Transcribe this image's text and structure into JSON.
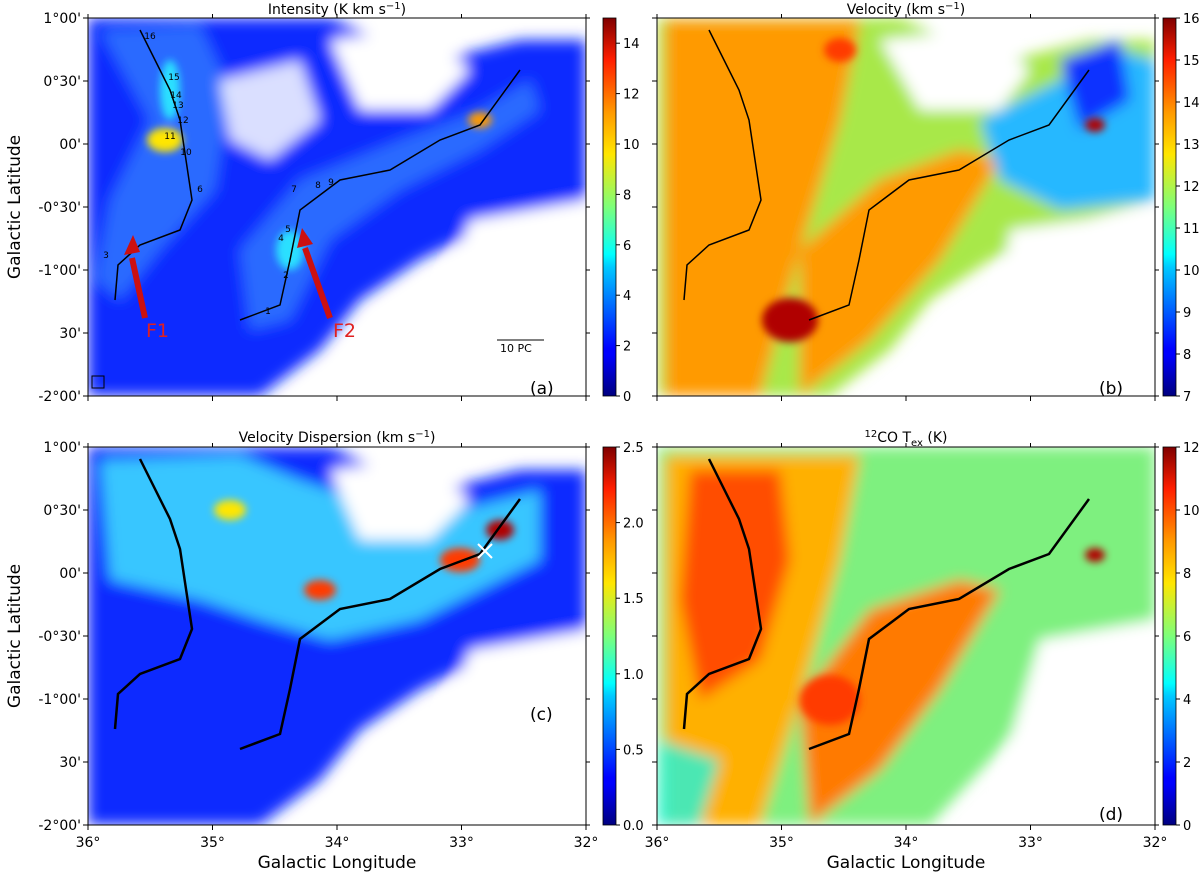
{
  "chart_data": [
    {
      "type": "heatmap",
      "panel_label": "(a)",
      "title_prefix": "Intensity (K km s",
      "title_sup": "−1",
      "title_suffix": ")",
      "ylabel": "Galactic Latitude",
      "xlabel": "",
      "colorbar_ticks": [
        "0",
        "2",
        "4",
        "6",
        "8",
        "10",
        "12",
        "14"
      ],
      "colorbar_range": [
        0,
        15
      ],
      "colormap": "jet",
      "annotations": {
        "filament_1": "F1",
        "filament_2": "F2",
        "scale_bar": "10 PC",
        "clump_numbers": [
          "1",
          "2",
          "3",
          "4",
          "5",
          "6",
          "7",
          "8",
          "9",
          "10",
          "11",
          "12",
          "13",
          "14",
          "15",
          "16"
        ]
      }
    },
    {
      "type": "heatmap",
      "panel_label": "(b)",
      "title_prefix": "Velocity (km s",
      "title_sup": "−1",
      "title_suffix": ")",
      "colorbar_ticks": [
        "7",
        "8",
        "9",
        "10",
        "11",
        "12",
        "13",
        "14",
        "15",
        "16"
      ],
      "colorbar_range": [
        7,
        16
      ],
      "colormap": "jet"
    },
    {
      "type": "heatmap",
      "panel_label": "(c)",
      "title_prefix": "Velocity Dispersion (km s",
      "title_sup": "−1",
      "title_suffix": ")",
      "ylabel": "Galactic Latitude",
      "xlabel": "Galactic Longitude",
      "colorbar_ticks": [
        "0.0",
        "0.5",
        "1.0",
        "1.5",
        "2.0",
        "2.5"
      ],
      "colorbar_range": [
        0,
        2.5
      ],
      "colormap": "jet"
    },
    {
      "type": "heatmap",
      "panel_label": "(d)",
      "title_sup_pre": "12",
      "title_prefix": "CO T",
      "title_sub": "ex",
      "title_suffix": " (K)",
      "xlabel": "Galactic Longitude",
      "colorbar_ticks": [
        "0",
        "2",
        "4",
        "6",
        "8",
        "10",
        "12"
      ],
      "colorbar_range": [
        0,
        12
      ],
      "colormap": "jet"
    }
  ],
  "axes": {
    "x_ticks": [
      "36°",
      "35°",
      "34°",
      "33°",
      "32°"
    ],
    "y_ticks": [
      "1°00'",
      "0°30'",
      "00'",
      "-0°30'",
      "-1°00'",
      "30'",
      "-2°00'"
    ],
    "xlim": [
      36,
      32
    ],
    "ylim": [
      -2,
      1
    ]
  }
}
